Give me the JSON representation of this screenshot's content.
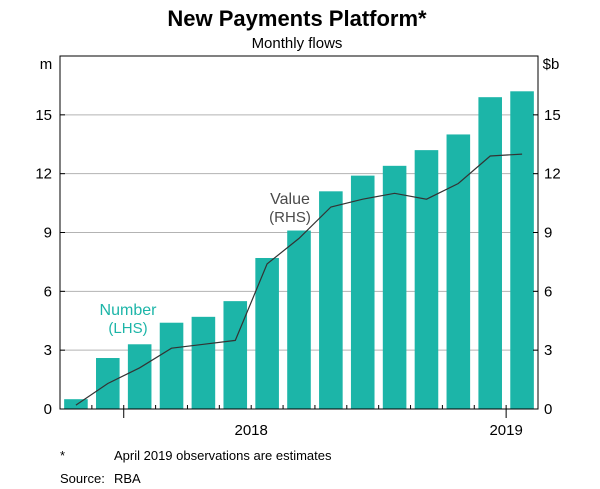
{
  "chart_data": {
    "type": "bar",
    "title": "New Payments Platform*",
    "subtitle": "Monthly flows",
    "left_unit": "m",
    "right_unit": "$b",
    "yticks": [
      0,
      3,
      6,
      9,
      12,
      15
    ],
    "ylim": [
      0,
      18
    ],
    "x_year_labels": [
      {
        "label": "2018",
        "index": 5.5
      },
      {
        "label": "2019",
        "index": 13.5
      }
    ],
    "x_year_dividers": [
      1.5,
      13.5
    ],
    "grid": true,
    "bar_color": "#1cb5a8",
    "line_color": "#333333",
    "series": [
      {
        "name": "Number",
        "name_sub": "(LHS)",
        "axis": "left",
        "kind": "bar",
        "values": [
          0.5,
          2.6,
          3.3,
          4.4,
          4.7,
          5.5,
          7.7,
          9.1,
          11.1,
          11.9,
          12.4,
          13.2,
          14.0,
          15.9,
          16.2
        ]
      },
      {
        "name": "Value",
        "name_sub": "(RHS)",
        "axis": "right",
        "kind": "line",
        "values": [
          0.2,
          1.3,
          2.1,
          3.1,
          3.3,
          3.5,
          7.4,
          8.7,
          10.3,
          10.7,
          11.0,
          10.7,
          11.5,
          12.9,
          13.0
        ]
      }
    ]
  },
  "footnotes": {
    "star_key": "*",
    "star_text": "April 2019 observations are estimates",
    "source_key": "Source:",
    "source_text": "RBA"
  }
}
